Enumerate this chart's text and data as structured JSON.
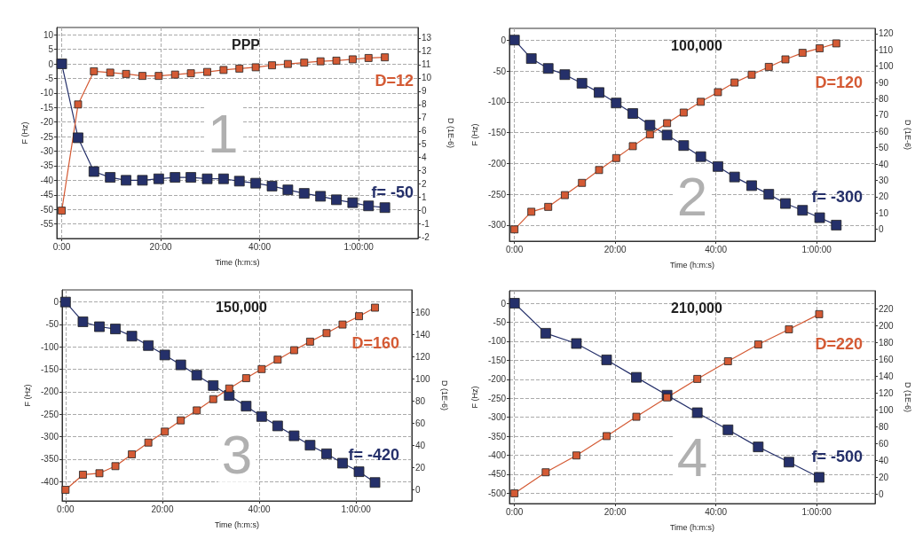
{
  "chart_data": [
    {
      "type": "line",
      "title": "PPP",
      "xlabel": "Time (h:m:s)",
      "ylabel": "F (Hz)",
      "y2label": "D (1E-6)",
      "annotations": [
        "1",
        "D=12",
        "f= -50"
      ],
      "marker": "square",
      "grid": true,
      "xlim": [
        -1,
        72
      ],
      "xticks": [
        {
          "value": 0,
          "label": "0:00"
        },
        {
          "value": 20,
          "label": "20:00"
        },
        {
          "value": 40,
          "label": "40:00"
        },
        {
          "value": 60,
          "label": "1:00:00"
        }
      ],
      "ylim": [
        -60,
        12.5
      ],
      "yticks": [
        -55,
        -50,
        -45,
        -40,
        -35,
        -30,
        -25,
        -20,
        -15,
        -10,
        -5,
        0,
        5,
        10
      ],
      "y2lim": [
        -2.1,
        13.8
      ],
      "y2ticks": [
        -2,
        -1,
        0,
        1,
        2,
        3,
        4,
        5,
        6,
        7,
        8,
        9,
        10,
        11,
        12,
        13
      ],
      "series": [
        {
          "color": "#25306a",
          "x": [
            0,
            3.3,
            6.5,
            9.8,
            13,
            16.3,
            19.6,
            22.9,
            26.1,
            29.4,
            32.7,
            35.9,
            39.2,
            42.5,
            45.7,
            49,
            52.3,
            55.5,
            58.8,
            62,
            65.3
          ],
          "values": [
            0,
            -25.4,
            -37,
            -39,
            -40,
            -40,
            -39.5,
            -39,
            -39,
            -39.5,
            -39.5,
            -40.3,
            -41,
            -42,
            -43.3,
            -44.5,
            -45.5,
            -46.7,
            -47.7,
            -48.8,
            -49.4
          ]
        },
        {
          "color": "#d45a34",
          "axis": "y2",
          "x": [
            0,
            3.3,
            6.5,
            9.8,
            13,
            16.3,
            19.6,
            22.9,
            26.1,
            29.4,
            32.7,
            35.9,
            39.2,
            42.5,
            45.7,
            49,
            52.3,
            55.5,
            58.8,
            62,
            65.3
          ],
          "values": [
            0,
            8,
            10.5,
            10.4,
            10.3,
            10.15,
            10.15,
            10.25,
            10.35,
            10.45,
            10.6,
            10.7,
            10.8,
            10.95,
            11.05,
            11.15,
            11.25,
            11.3,
            11.4,
            11.5,
            11.55
          ]
        }
      ]
    },
    {
      "type": "line",
      "title": "100,000",
      "xlabel": "Time (h:m:s)",
      "ylabel": "F (Hz)",
      "y2label": "D (1E-6)",
      "annotations": [
        "2",
        "D=120",
        "f= -300"
      ],
      "marker": "square",
      "grid": true,
      "xlim": [
        -1,
        71.6
      ],
      "xticks": [
        {
          "value": 0,
          "label": "0:00"
        },
        {
          "value": 20,
          "label": "20:00"
        },
        {
          "value": 40,
          "label": "40:00"
        },
        {
          "value": 60,
          "label": "1:00:00"
        }
      ],
      "ylim": [
        -326,
        19
      ],
      "yticks": [
        -300,
        -250,
        -200,
        -150,
        -100,
        -50,
        0
      ],
      "y2lim": [
        -7.2,
        123.2
      ],
      "y2ticks": [
        0,
        10,
        20,
        30,
        40,
        50,
        60,
        70,
        80,
        90,
        100,
        110,
        120
      ],
      "series": [
        {
          "color": "#25306a",
          "x": [
            0,
            3.35,
            6.7,
            10,
            13.4,
            16.8,
            20.2,
            23.5,
            26.9,
            30.3,
            33.6,
            37,
            40.4,
            43.7,
            47.1,
            50.5,
            53.8,
            57.2,
            60.6,
            63.9
          ],
          "values": [
            0,
            -30,
            -46,
            -56,
            -70,
            -85,
            -102,
            -119,
            -138,
            -154,
            -171,
            -189,
            -205,
            -222,
            -236,
            -250,
            -265,
            -276,
            -288,
            -300
          ]
        },
        {
          "color": "#d45a34",
          "axis": "y2",
          "x": [
            0,
            3.35,
            6.7,
            10,
            13.4,
            16.8,
            20.2,
            23.5,
            26.9,
            30.3,
            33.6,
            37,
            40.4,
            43.7,
            47.1,
            50.5,
            53.8,
            57.2,
            60.6,
            63.9
          ],
          "values": [
            0,
            10.8,
            13.8,
            21,
            28.5,
            36.4,
            43.7,
            51,
            58.2,
            65.1,
            71.6,
            78.2,
            84.1,
            90,
            94.8,
            99.6,
            104.2,
            108.2,
            111,
            114
          ]
        }
      ]
    },
    {
      "type": "line",
      "title": "150,000",
      "xlabel": "Time (h:m:s)",
      "ylabel": "F (Hz)",
      "y2label": "D (1E-6)",
      "annotations": [
        "3",
        "D=160",
        "f= -420"
      ],
      "marker": "square",
      "grid": true,
      "xlim": [
        -0.7,
        71.5
      ],
      "xticks": [
        {
          "value": 0,
          "label": "0:00"
        },
        {
          "value": 20,
          "label": "20:00"
        },
        {
          "value": 40,
          "label": "40:00"
        },
        {
          "value": 60,
          "label": "1:00:00"
        }
      ],
      "ylim": [
        -443,
        27
      ],
      "yticks": [
        -400,
        -350,
        -300,
        -250,
        -200,
        -150,
        -100,
        -50,
        0
      ],
      "y2lim": [
        -10,
        180
      ],
      "y2ticks": [
        0,
        20,
        40,
        60,
        80,
        100,
        120,
        140,
        160
      ],
      "series": [
        {
          "color": "#25306a",
          "x": [
            0,
            3.6,
            7,
            10.3,
            13.7,
            17.1,
            20.5,
            23.8,
            27.1,
            30.5,
            33.8,
            37.3,
            40.5,
            43.8,
            47.2,
            50.5,
            53.9,
            57.2,
            60.6,
            63.9
          ],
          "values": [
            0,
            -44,
            -55,
            -60,
            -76,
            -97,
            -118,
            -140,
            -163,
            -186,
            -208,
            -232,
            -255,
            -276,
            -298,
            -319,
            -338,
            -359,
            -378,
            -402
          ]
        },
        {
          "color": "#d45a34",
          "axis": "y2",
          "x": [
            0,
            3.6,
            7,
            10.3,
            13.7,
            17.1,
            20.5,
            23.8,
            27.1,
            30.5,
            33.8,
            37.3,
            40.5,
            43.8,
            47.2,
            50.5,
            53.9,
            57.2,
            60.6,
            63.9
          ],
          "values": [
            0,
            13.6,
            14.9,
            21.3,
            31.9,
            42.5,
            52.4,
            62.5,
            71.5,
            81.6,
            91.2,
            100.5,
            108.7,
            117.2,
            125.7,
            133.4,
            141.1,
            148.8,
            156.3,
            164
          ]
        }
      ]
    },
    {
      "type": "line",
      "title": "210,000",
      "xlabel": "Time (h:m:s)",
      "ylabel": "F (Hz)",
      "y2label": "D (1E-6)",
      "annotations": [
        "4",
        "D=220",
        "f= -500"
      ],
      "marker": "square",
      "grid": true,
      "xlim": [
        -1,
        71.6
      ],
      "xticks": [
        {
          "value": 0,
          "label": "0:00"
        },
        {
          "value": 20,
          "label": "20:00"
        },
        {
          "value": 40,
          "label": "40:00"
        },
        {
          "value": 60,
          "label": "1:00:00"
        }
      ],
      "ylim": [
        -527,
        32.7
      ],
      "yticks": [
        -500,
        -450,
        -400,
        -350,
        -300,
        -250,
        -200,
        -150,
        -100,
        -50,
        0
      ],
      "y2lim": [
        -11.2,
        241.8
      ],
      "y2ticks": [
        0,
        20,
        40,
        60,
        80,
        100,
        120,
        140,
        160,
        180,
        200,
        220
      ],
      "series": [
        {
          "color": "#25306a",
          "x": [
            0,
            6.2,
            12.3,
            18.3,
            24.2,
            30.3,
            36.3,
            42.4,
            48.4,
            54.5,
            60.5
          ],
          "values": [
            0,
            -79,
            -106,
            -149,
            -195,
            -242,
            -288,
            -333,
            -378,
            -418,
            -458
          ]
        },
        {
          "color": "#d45a34",
          "axis": "y2",
          "x": [
            0,
            6.2,
            12.3,
            18.3,
            24.2,
            30.3,
            36.3,
            42.4,
            48.4,
            54.5,
            60.5
          ],
          "values": [
            1,
            26,
            46,
            69,
            92,
            115,
            137,
            158,
            178,
            196,
            214
          ]
        }
      ]
    }
  ]
}
